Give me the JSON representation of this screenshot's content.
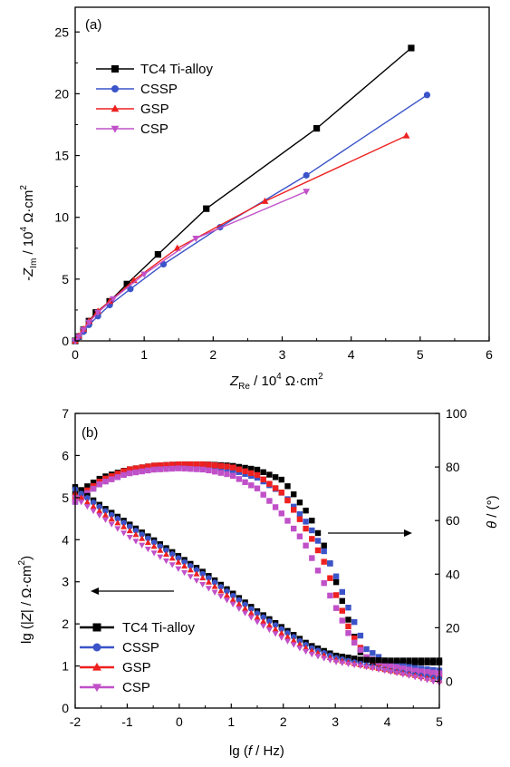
{
  "colors": {
    "tc4": "#000000",
    "cssp": "#3b54c9",
    "gsp": "#ee2020",
    "csp": "#c050c8"
  },
  "chart_data": [
    {
      "panel": "(a)",
      "type": "line",
      "xlabel": {
        "pre": "Z",
        "sub": "Re",
        "post": " / 10",
        "sup": "4",
        "unit": " Ω·cm",
        "sup2": "2"
      },
      "ylabel": {
        "pre": "-Z",
        "sub": "Im",
        "post": " / 10",
        "sup": "4",
        "unit": " Ω·cm",
        "sup2": "2"
      },
      "xlim": [
        0,
        6
      ],
      "ylim": [
        0,
        27
      ],
      "xticks": [
        "0",
        "1",
        "2",
        "3",
        "4",
        "5",
        "6"
      ],
      "yticks": [
        "0",
        "5",
        "10",
        "15",
        "20",
        "25"
      ],
      "legend": "top-left",
      "series": [
        {
          "name": "TC4 Ti-alloy",
          "marker": "square",
          "color": "#000000",
          "points": [
            [
              0.0,
              0.0
            ],
            [
              0.05,
              0.35
            ],
            [
              0.12,
              0.9
            ],
            [
              0.2,
              1.6
            ],
            [
              0.3,
              2.3
            ],
            [
              0.5,
              3.2
            ],
            [
              0.75,
              4.6
            ],
            [
              1.2,
              7.0
            ],
            [
              1.9,
              10.7
            ],
            [
              3.5,
              17.2
            ],
            [
              4.87,
              23.7
            ]
          ]
        },
        {
          "name": "CSSP",
          "marker": "circle",
          "color": "#3b54c9",
          "points": [
            [
              0.0,
              0.0
            ],
            [
              0.05,
              0.3
            ],
            [
              0.12,
              0.75
            ],
            [
              0.2,
              1.3
            ],
            [
              0.33,
              2.0
            ],
            [
              0.5,
              2.9
            ],
            [
              0.8,
              4.2
            ],
            [
              1.28,
              6.2
            ],
            [
              2.1,
              9.2
            ],
            [
              3.35,
              13.4
            ],
            [
              5.1,
              19.9
            ]
          ]
        },
        {
          "name": "GSP",
          "marker": "triangle-up",
          "color": "#ee2020",
          "points": [
            [
              0.0,
              0.0
            ],
            [
              0.05,
              0.4
            ],
            [
              0.12,
              0.95
            ],
            [
              0.2,
              1.6
            ],
            [
              0.33,
              2.4
            ],
            [
              0.5,
              3.2
            ],
            [
              0.85,
              4.9
            ],
            [
              1.48,
              7.5
            ],
            [
              2.75,
              11.3
            ],
            [
              4.8,
              16.6
            ]
          ]
        },
        {
          "name": "CSP",
          "marker": "triangle-down",
          "color": "#c050c8",
          "points": [
            [
              0.0,
              0.0
            ],
            [
              0.05,
              0.35
            ],
            [
              0.12,
              0.9
            ],
            [
              0.2,
              1.5
            ],
            [
              0.33,
              2.3
            ],
            [
              0.55,
              3.4
            ],
            [
              1.0,
              5.4
            ],
            [
              1.75,
              8.3
            ],
            [
              3.35,
              12.1
            ]
          ]
        }
      ]
    },
    {
      "panel": "(b)",
      "type": "line",
      "xlabel": {
        "pre": "lg (",
        "ital": "f",
        "post": " / Hz)"
      },
      "ylabel_left": {
        "pre": "lg (|",
        "ital": "Z",
        "post": "| / Ω·cm",
        "sup": "2",
        "end": ")"
      },
      "ylabel_right": {
        "theta": "θ",
        "post": " / (°)"
      },
      "xlim": [
        -2,
        5
      ],
      "ylim_left": [
        0,
        7
      ],
      "ylim_right": [
        -10,
        100
      ],
      "xticks": [
        "-2",
        "-1",
        "0",
        "1",
        "2",
        "3",
        "4",
        "5"
      ],
      "yticks_left": [
        "0",
        "1",
        "2",
        "3",
        "4",
        "5",
        "6",
        "7"
      ],
      "yticks_right": [
        "0",
        "20",
        "40",
        "60",
        "80",
        "100"
      ],
      "legend": "bottom-left",
      "impedance_series": [
        {
          "name": "TC4 Ti-alloy",
          "marker": "square",
          "color": "#000000",
          "points": [
            [
              -2,
              5.25
            ],
            [
              -1.5,
              4.8
            ],
            [
              -1,
              4.4
            ],
            [
              -0.5,
              4.0
            ],
            [
              0,
              3.6
            ],
            [
              0.5,
              3.2
            ],
            [
              1,
              2.75
            ],
            [
              1.5,
              2.3
            ],
            [
              2,
              1.9
            ],
            [
              2.5,
              1.5
            ],
            [
              3,
              1.25
            ],
            [
              3.5,
              1.15
            ],
            [
              4,
              1.13
            ],
            [
              5,
              1.13
            ]
          ]
        },
        {
          "name": "CSSP",
          "marker": "circle",
          "color": "#3b54c9",
          "points": [
            [
              -2,
              5.2
            ],
            [
              -1.5,
              4.75
            ],
            [
              -1,
              4.35
            ],
            [
              -0.5,
              3.95
            ],
            [
              0,
              3.55
            ],
            [
              0.5,
              3.15
            ],
            [
              1,
              2.7
            ],
            [
              1.5,
              2.25
            ],
            [
              2,
              1.85
            ],
            [
              2.5,
              1.45
            ],
            [
              3,
              1.2
            ],
            [
              3.5,
              1.05
            ],
            [
              4,
              0.9
            ],
            [
              4.5,
              0.8
            ],
            [
              5,
              0.7
            ]
          ]
        },
        {
          "name": "GSP",
          "marker": "triangle-up",
          "color": "#ee2020",
          "points": [
            [
              -2,
              5.1
            ],
            [
              -1.5,
              4.65
            ],
            [
              -1,
              4.25
            ],
            [
              -0.5,
              3.85
            ],
            [
              0,
              3.45
            ],
            [
              0.5,
              3.05
            ],
            [
              1,
              2.6
            ],
            [
              1.5,
              2.15
            ],
            [
              2,
              1.75
            ],
            [
              2.5,
              1.38
            ],
            [
              3,
              1.15
            ],
            [
              3.5,
              1.02
            ],
            [
              4,
              0.9
            ],
            [
              4.5,
              0.78
            ],
            [
              5,
              0.65
            ]
          ]
        },
        {
          "name": "CSP",
          "marker": "triangle-down",
          "color": "#c050c8",
          "points": [
            [
              -2,
              5.0
            ],
            [
              -1.5,
              4.55
            ],
            [
              -1,
              4.1
            ],
            [
              -0.5,
              3.7
            ],
            [
              0,
              3.3
            ],
            [
              0.5,
              2.9
            ],
            [
              1,
              2.5
            ],
            [
              1.5,
              2.05
            ],
            [
              2,
              1.65
            ],
            [
              2.5,
              1.3
            ],
            [
              3,
              1.1
            ],
            [
              3.5,
              1.0
            ],
            [
              4,
              0.88
            ],
            [
              4.5,
              0.75
            ],
            [
              5,
              0.6
            ]
          ]
        }
      ],
      "phase_series": [
        {
          "name": "TC4 Ti-alloy",
          "color": "#000000",
          "points": [
            [
              -2,
              70
            ],
            [
              -1.5,
              76
            ],
            [
              -1,
              79
            ],
            [
              -0.5,
              80.5
            ],
            [
              0,
              81
            ],
            [
              0.5,
              81
            ],
            [
              1,
              80.5
            ],
            [
              1.5,
              79
            ],
            [
              2,
              75
            ],
            [
              2.5,
              62
            ],
            [
              2.8,
              50
            ],
            [
              3,
              38
            ],
            [
              3.3,
              20
            ],
            [
              3.5,
              10
            ],
            [
              3.7,
              7
            ],
            [
              4,
              7
            ],
            [
              5,
              7
            ]
          ]
        },
        {
          "name": "CSSP",
          "color": "#3b54c9",
          "points": [
            [
              -2,
              67
            ],
            [
              -1.5,
              74
            ],
            [
              -1,
              78
            ],
            [
              -0.5,
              79.5
            ],
            [
              0,
              80
            ],
            [
              0.5,
              80
            ],
            [
              1,
              79
            ],
            [
              1.5,
              76
            ],
            [
              2,
              70
            ],
            [
              2.5,
              58
            ],
            [
              2.8,
              48
            ],
            [
              3,
              40
            ],
            [
              3.3,
              25
            ],
            [
              3.6,
              12
            ],
            [
              4,
              7
            ],
            [
              4.5,
              5
            ],
            [
              5,
              4
            ]
          ]
        },
        {
          "name": "GSP",
          "color": "#ee2020",
          "points": [
            [
              -2,
              68
            ],
            [
              -1.5,
              75
            ],
            [
              -1,
              79
            ],
            [
              -0.5,
              80.5
            ],
            [
              0,
              81
            ],
            [
              0.5,
              81
            ],
            [
              1,
              80
            ],
            [
              1.5,
              77
            ],
            [
              2,
              70
            ],
            [
              2.5,
              55
            ],
            [
              2.8,
              44
            ],
            [
              3,
              33
            ],
            [
              3.3,
              18
            ],
            [
              3.6,
              9
            ],
            [
              4,
              5
            ],
            [
              4.5,
              3
            ],
            [
              5,
              2
            ]
          ]
        },
        {
          "name": "CSP",
          "color": "#c050c8",
          "points": [
            [
              -2,
              67
            ],
            [
              -1.5,
              74
            ],
            [
              -1,
              77.5
            ],
            [
              -0.5,
              79
            ],
            [
              0,
              79.5
            ],
            [
              0.5,
              79
            ],
            [
              1,
              77
            ],
            [
              1.5,
              72
            ],
            [
              2,
              62
            ],
            [
              2.4,
              52
            ],
            [
              2.7,
              40
            ],
            [
              3,
              28
            ],
            [
              3.3,
              16
            ],
            [
              3.6,
              9
            ],
            [
              4,
              6
            ],
            [
              4.5,
              4
            ],
            [
              5,
              3
            ]
          ]
        }
      ]
    }
  ]
}
